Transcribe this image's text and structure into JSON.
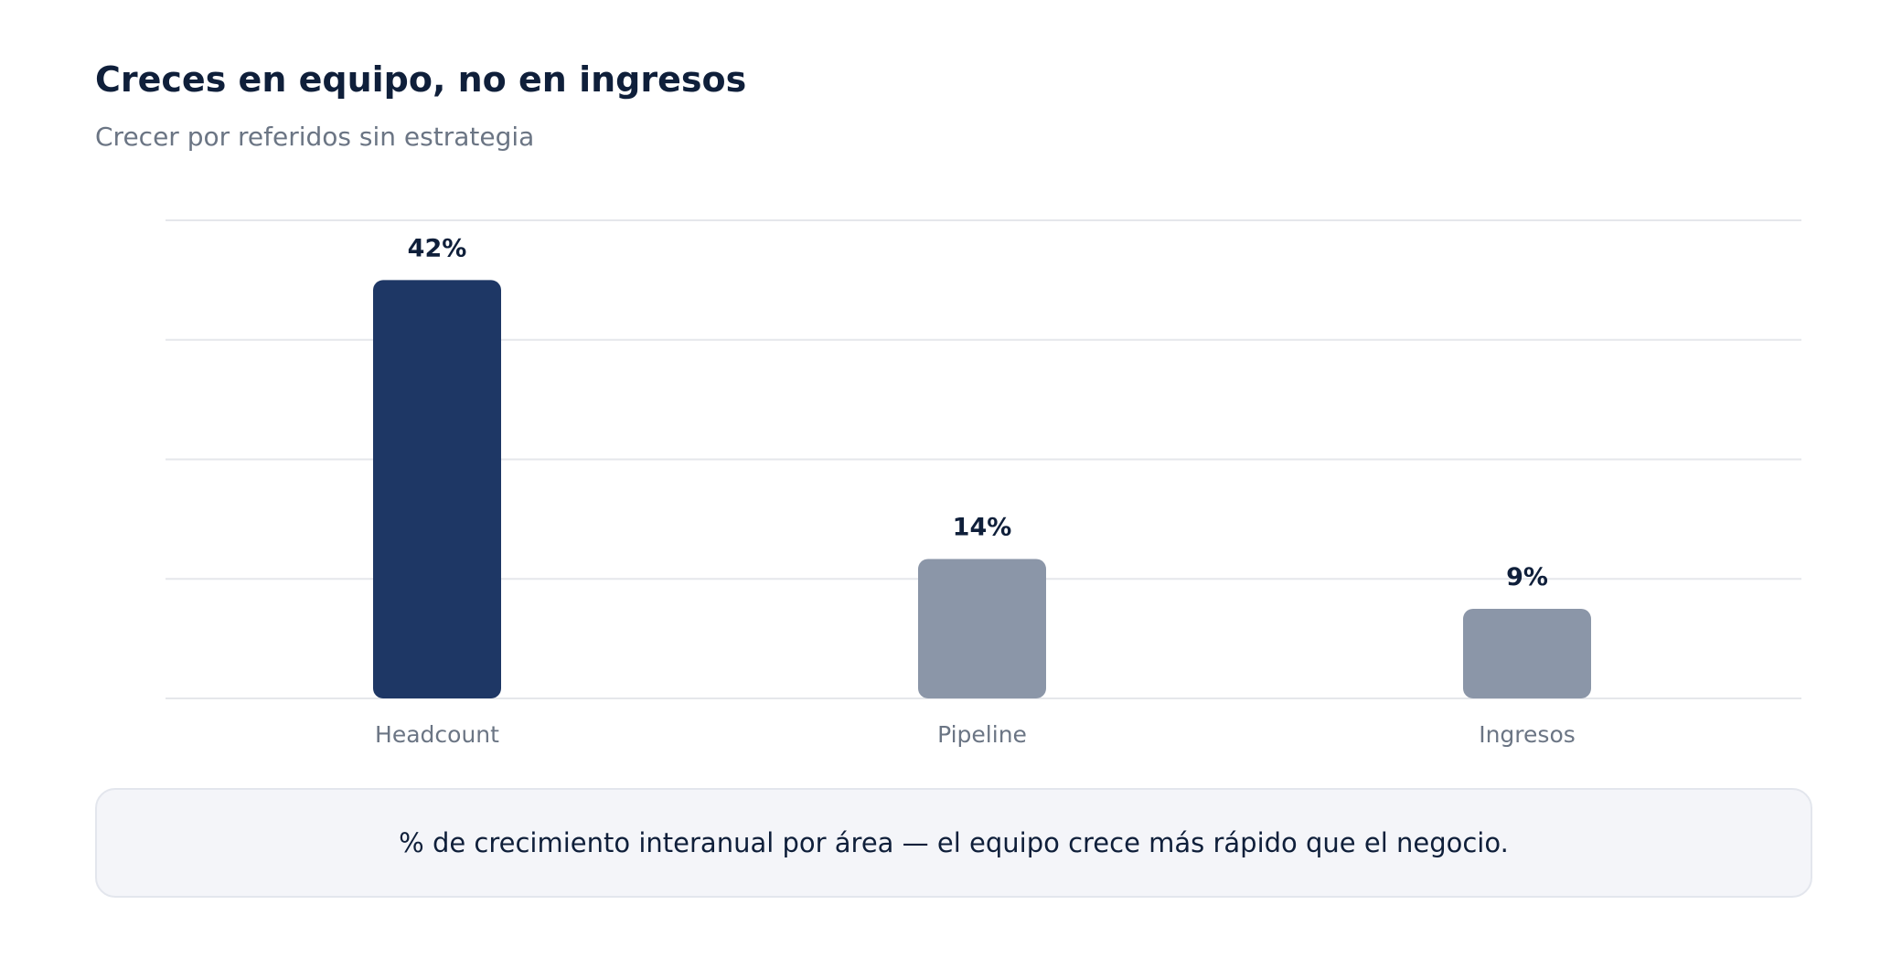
{
  "header": {
    "title": "Creces en equipo, no en ingresos",
    "subtitle": "Crecer por referidos sin estrategia"
  },
  "chart_data": {
    "type": "bar",
    "categories": [
      "Headcount",
      "Pipeline",
      "Ingresos"
    ],
    "values": [
      42,
      14,
      9
    ],
    "value_labels": [
      "42%",
      "14%",
      "9%"
    ],
    "ylim": [
      0,
      48
    ],
    "gridlines": true,
    "y_ticks_shown": false,
    "colors": {
      "highlight": "#1e3765",
      "muted": "#8b96a8",
      "grid": "#e5e7eb",
      "value_label": "#0f1f3a",
      "category_label": "#6b7584"
    },
    "highlight_index": 0
  },
  "note": {
    "text": "% de crecimiento interanual por área — el equipo crece más rápido que el negocio."
  }
}
